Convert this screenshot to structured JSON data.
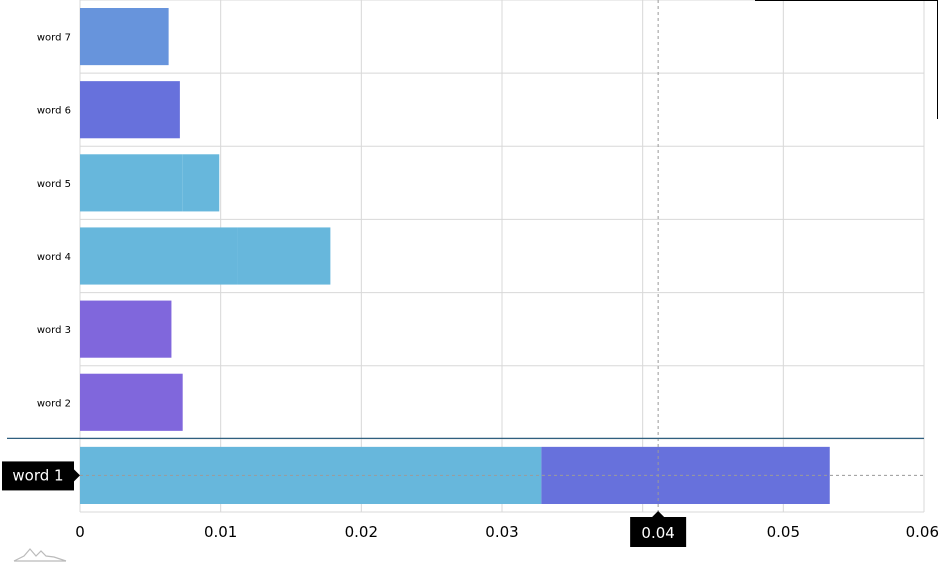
{
  "chart_data": {
    "type": "bar",
    "orientation": "horizontal",
    "stacked": true,
    "categories": [
      "word 1",
      "word 2",
      "word 3",
      "word 4",
      "word 5",
      "word 6",
      "word 7"
    ],
    "segments": [
      [
        {
          "value": 0.0328,
          "color": "#67b7dc"
        },
        {
          "value": 0.0205,
          "color": "#6771dc"
        }
      ],
      [
        {
          "value": 0.0073,
          "color": "#8067dc"
        }
      ],
      [
        {
          "value": 0.0065,
          "color": "#8067dc"
        }
      ],
      [
        {
          "value": 0.0112,
          "color": "#67b7dc"
        },
        {
          "value": 0.0066,
          "color": "#67b7dc"
        }
      ],
      [
        {
          "value": 0.0073,
          "color": "#67b7dc"
        },
        {
          "value": 0.0026,
          "color": "#67b7dc"
        }
      ],
      [
        {
          "value": 0.0071,
          "color": "#6771dc"
        }
      ],
      [
        {
          "value": 0.0063,
          "color": "#6794dc"
        }
      ]
    ],
    "xlim": [
      0,
      0.06
    ],
    "x_ticks": [
      "0",
      "0.01",
      "0.02",
      "0.03",
      "0.04",
      "0.05",
      "0.06"
    ],
    "grid": true,
    "cursor": {
      "category_label": "word 1",
      "x_label": "0.04",
      "x_value": 0.0411
    }
  }
}
